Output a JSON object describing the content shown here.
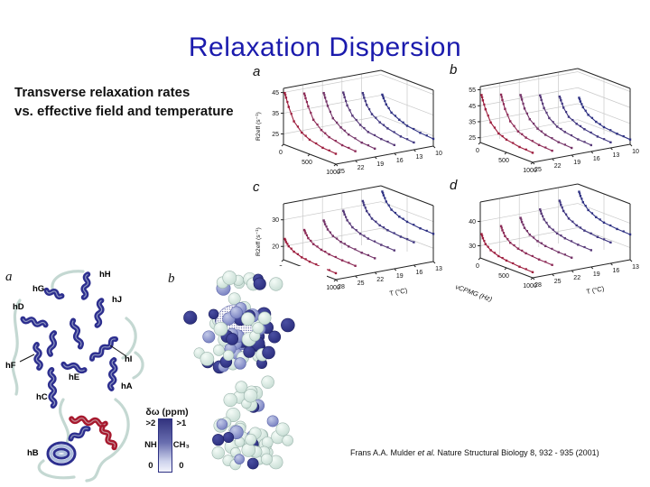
{
  "slide": {
    "title": "Relaxation Dispersion",
    "subtitle_line1": "Transverse relaxation rates",
    "subtitle_line2": "vs. effective field and temperature",
    "citation": {
      "pre": "Frans A.A. Mulder ",
      "italic": "et al.",
      "post": " Nature Structural Biology 8, 932 - 935 (2001)"
    }
  },
  "colors": {
    "title_blue": "#1b1bad",
    "series_palette": [
      "#9d1d3d",
      "#8d2a56",
      "#743368",
      "#583a79",
      "#403781",
      "#2e3183"
    ],
    "grid": "#c9c9c9",
    "frame": "#222222",
    "helix_navy": "#2d2f8f",
    "helix_red": "#a7192e",
    "loop_pale": "#c4d8d2",
    "sphere_navy": "#2b2e7d",
    "sphere_slate": "#8d95c8",
    "sphere_pale": "#dcece5"
  },
  "chart_data": [
    {
      "panel": "a",
      "type": "line",
      "ylabel": "R2eff (s⁻¹)",
      "show_ylabel": true,
      "ylim": [
        20,
        47
      ],
      "yticks": [
        25,
        35,
        45
      ],
      "x": [
        25,
        50,
        100,
        200,
        350,
        500,
        750,
        1000
      ],
      "xlim": [
        0,
        1000
      ],
      "xticks": [
        0,
        500,
        1000
      ],
      "xlabel": "",
      "tlabel": "",
      "temps": [
        25,
        22,
        19,
        16,
        13,
        10
      ],
      "series": [
        {
          "name": "25 °C",
          "values": [
            45,
            43,
            39,
            33,
            29,
            27,
            25.5,
            25
          ]
        },
        {
          "name": "22 °C",
          "values": [
            43,
            41,
            37.5,
            32,
            28.5,
            26.5,
            25,
            24.5
          ]
        },
        {
          "name": "19 °C",
          "values": [
            41.5,
            39.5,
            36,
            31,
            28,
            26,
            24.5,
            24
          ]
        },
        {
          "name": "16 °C",
          "values": [
            40,
            38,
            34.5,
            30.5,
            27.5,
            25.5,
            24.5,
            24
          ]
        },
        {
          "name": "13 °C",
          "values": [
            38,
            36,
            33,
            29.5,
            27,
            25.5,
            24,
            23.5
          ]
        },
        {
          "name": "10 °C",
          "values": [
            35.5,
            34,
            31.5,
            28.5,
            26.5,
            25,
            24,
            23.5
          ]
        }
      ]
    },
    {
      "panel": "b",
      "type": "line",
      "ylabel": "",
      "show_ylabel": false,
      "ylim": [
        22,
        57
      ],
      "yticks": [
        25,
        35,
        45,
        55
      ],
      "x": [
        25,
        50,
        100,
        200,
        350,
        500,
        750,
        1000
      ],
      "xlim": [
        0,
        1000
      ],
      "xticks": [
        0,
        500,
        1000
      ],
      "xlabel": "",
      "tlabel": "",
      "temps": [
        25,
        22,
        19,
        16,
        13,
        10
      ],
      "series": [
        {
          "name": "25 °C",
          "values": [
            52,
            49,
            44,
            37,
            32,
            30,
            28.5,
            28
          ]
        },
        {
          "name": "22 °C",
          "values": [
            50,
            47,
            42,
            35.5,
            31,
            29,
            27.5,
            27
          ]
        },
        {
          "name": "19 °C",
          "values": [
            47.5,
            45,
            40,
            34.5,
            30.5,
            28.5,
            27,
            26.5
          ]
        },
        {
          "name": "16 °C",
          "values": [
            45,
            42.5,
            38,
            33,
            29.5,
            28,
            26.5,
            26
          ]
        },
        {
          "name": "13 °C",
          "values": [
            42,
            40,
            36,
            31.5,
            29,
            27.5,
            26,
            25.5
          ]
        },
        {
          "name": "10 °C",
          "values": [
            39,
            37,
            34,
            30.5,
            28,
            26.5,
            25.5,
            25
          ]
        }
      ]
    },
    {
      "panel": "c",
      "type": "line",
      "ylabel": "R2eff (s⁻¹)",
      "show_ylabel": true,
      "ylim": [
        15,
        36
      ],
      "yticks": [
        20,
        30
      ],
      "x": [
        25,
        50,
        100,
        200,
        350,
        500,
        750,
        1000
      ],
      "xlim": [
        0,
        1000
      ],
      "xticks": [
        0,
        500,
        1000
      ],
      "xlabel": "νCPMG (Hz)",
      "tlabel": "T (°C)",
      "temps": [
        28,
        25,
        22,
        19,
        16,
        13
      ],
      "series": [
        {
          "name": "28 °C",
          "values": [
            23,
            22,
            20.8,
            19.5,
            18.5,
            18,
            17.6,
            17.4
          ]
        },
        {
          "name": "25 °C",
          "values": [
            25,
            24,
            22.5,
            21,
            20,
            19.4,
            19,
            18.8
          ]
        },
        {
          "name": "22 °C",
          "values": [
            27.2,
            26,
            24.4,
            22.7,
            21.6,
            21,
            20.5,
            20.3
          ]
        },
        {
          "name": "19 °C",
          "values": [
            29.5,
            28.3,
            26.5,
            24.6,
            23.3,
            22.6,
            22.1,
            21.9
          ]
        },
        {
          "name": "16 °C",
          "values": [
            31.8,
            30.5,
            28.6,
            26.5,
            25.1,
            24.4,
            23.8,
            23.6
          ]
        },
        {
          "name": "13 °C",
          "values": [
            34,
            32.8,
            30.8,
            28.5,
            27,
            26.2,
            25.6,
            25.4
          ]
        }
      ]
    },
    {
      "panel": "d",
      "type": "line",
      "ylabel": "",
      "show_ylabel": false,
      "ylim": [
        25,
        48
      ],
      "yticks": [
        30,
        40
      ],
      "x": [
        25,
        50,
        100,
        200,
        350,
        500,
        750,
        1000
      ],
      "xlim": [
        0,
        1000
      ],
      "xticks": [
        0,
        500,
        1000
      ],
      "xlabel": "νCPMG (Hz)",
      "tlabel": "T (°C)",
      "temps": [
        28,
        25,
        22,
        19,
        16,
        13
      ],
      "series": [
        {
          "name": "28 °C",
          "values": [
            35,
            33.5,
            31.5,
            29.8,
            28.6,
            28,
            27.5,
            27.3
          ]
        },
        {
          "name": "25 °C",
          "values": [
            36.8,
            35.3,
            33.3,
            31.4,
            30.2,
            29.5,
            29,
            28.8
          ]
        },
        {
          "name": "22 °C",
          "values": [
            38.7,
            37.2,
            35.2,
            33.2,
            31.8,
            31,
            30.5,
            30.3
          ]
        },
        {
          "name": "19 °C",
          "values": [
            40.7,
            39.2,
            37.2,
            35,
            33.5,
            32.7,
            32.1,
            31.9
          ]
        },
        {
          "name": "16 °C",
          "values": [
            42.8,
            41.3,
            39.2,
            36.9,
            35.3,
            34.4,
            33.8,
            33.6
          ]
        },
        {
          "name": "13 °C",
          "values": [
            45,
            43.5,
            41.3,
            38.9,
            37.2,
            36.2,
            35.6,
            35.4
          ]
        }
      ]
    }
  ],
  "structure_figure": {
    "panel_a_letter": "a",
    "panel_b_letter": "b",
    "helix_labels": [
      "hH",
      "hG",
      "hD",
      "hJ",
      "hF",
      "hI",
      "hE",
      "hA",
      "hC",
      "hB"
    ],
    "legend": {
      "title": "δω (ppm)",
      "left_top": ">2",
      "right_top": ">1",
      "left_mid": "NH",
      "right_mid": "CH₃",
      "left_bottom": "0",
      "right_bottom": "0"
    }
  }
}
